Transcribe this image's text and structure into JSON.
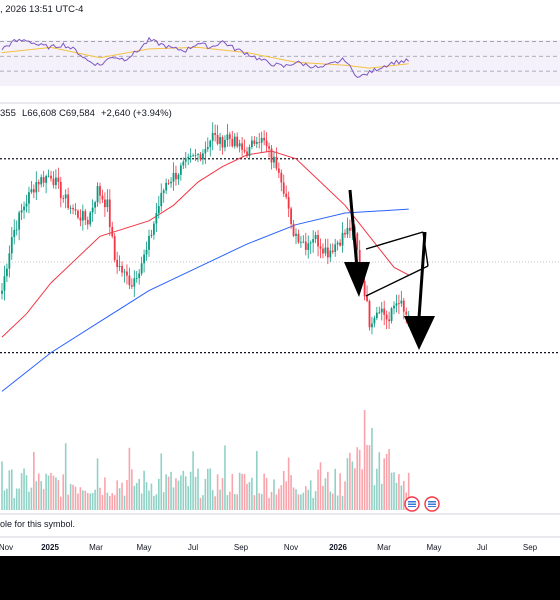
{
  "top_header": {
    "date_text": ", 2026 13:51 UTC-4"
  },
  "ohlc_header": {
    "open_fragment": "355",
    "low": "L66,608",
    "close": "C69,584",
    "change": "+2,640 (+3.94%)",
    "change_color": "#089981"
  },
  "notice": {
    "text": "ole for this symbol."
  },
  "colors": {
    "up": "#089981",
    "down": "#f23645",
    "ma_fast": "#f23645",
    "ma_slow": "#2962ff",
    "oscillator": "#7e57c2",
    "osc_signal": "#f5c242",
    "arrows": "#000000"
  },
  "chart_data": {
    "type": "candlestick",
    "x_ticks": [
      {
        "label": "Nov",
        "bold": false
      },
      {
        "label": "2025",
        "bold": true
      },
      {
        "label": "Mar",
        "bold": false
      },
      {
        "label": "May",
        "bold": false
      },
      {
        "label": "Jul",
        "bold": false
      },
      {
        "label": "Sep",
        "bold": false
      },
      {
        "label": "Nov",
        "bold": false
      },
      {
        "label": "2026",
        "bold": true
      },
      {
        "label": "Mar",
        "bold": false
      },
      {
        "label": "May",
        "bold": false
      },
      {
        "label": "Jul",
        "bold": false
      },
      {
        "label": "Sep",
        "bold": false
      }
    ],
    "last": {
      "open": 66944,
      "low": 66608,
      "close": 69584,
      "change": 2640,
      "change_pct": 3.94
    },
    "horizontal_levels": [
      110000,
      60000
    ],
    "price_path": [
      [
        0,
        76000
      ],
      [
        4,
        90000
      ],
      [
        9,
        98000
      ],
      [
        14,
        104000
      ],
      [
        20,
        106000
      ],
      [
        25,
        100000
      ],
      [
        30,
        96000
      ],
      [
        35,
        94000
      ],
      [
        39,
        102000
      ],
      [
        43,
        98000
      ],
      [
        46,
        84000
      ],
      [
        50,
        80000
      ],
      [
        53,
        78000
      ],
      [
        56,
        82000
      ],
      [
        59,
        86000
      ],
      [
        63,
        96000
      ],
      [
        67,
        104000
      ],
      [
        71,
        106000
      ],
      [
        74,
        108000
      ],
      [
        78,
        110000
      ],
      [
        82,
        112000
      ],
      [
        86,
        116000
      ],
      [
        89,
        114000
      ],
      [
        92,
        116000
      ],
      [
        95,
        114000
      ],
      [
        98,
        112000
      ],
      [
        101,
        112000
      ],
      [
        104,
        116000
      ],
      [
        107,
        114000
      ],
      [
        110,
        110000
      ],
      [
        113,
        108000
      ],
      [
        116,
        100000
      ],
      [
        118,
        92000
      ],
      [
        121,
        90000
      ],
      [
        124,
        88000
      ],
      [
        127,
        90000
      ],
      [
        130,
        88000
      ],
      [
        133,
        86000
      ],
      [
        136,
        88000
      ],
      [
        139,
        90000
      ],
      [
        142,
        92000
      ],
      [
        144,
        90000
      ],
      [
        146,
        82000
      ],
      [
        148,
        76000
      ],
      [
        150,
        68000
      ],
      [
        152,
        70000
      ],
      [
        154,
        72000
      ],
      [
        156,
        70000
      ],
      [
        158,
        68000
      ],
      [
        160,
        72000
      ],
      [
        162,
        74000
      ],
      [
        164,
        70000
      ],
      [
        166,
        69584
      ]
    ],
    "ma_fast": [
      [
        0,
        64000
      ],
      [
        10,
        70000
      ],
      [
        20,
        78000
      ],
      [
        30,
        84000
      ],
      [
        40,
        90000
      ],
      [
        50,
        92000
      ],
      [
        60,
        94000
      ],
      [
        70,
        98000
      ],
      [
        80,
        104000
      ],
      [
        90,
        108000
      ],
      [
        100,
        111000
      ],
      [
        110,
        112000
      ],
      [
        120,
        110000
      ],
      [
        130,
        104000
      ],
      [
        140,
        98000
      ],
      [
        150,
        90000
      ],
      [
        160,
        82000
      ],
      [
        166,
        80000
      ]
    ],
    "ma_slow": [
      [
        0,
        50000
      ],
      [
        20,
        60000
      ],
      [
        40,
        68000
      ],
      [
        60,
        76000
      ],
      [
        80,
        82000
      ],
      [
        100,
        88000
      ],
      [
        120,
        93000
      ],
      [
        140,
        96000
      ],
      [
        166,
        97000
      ]
    ],
    "oscillator": {
      "levels": [
        70,
        50,
        30
      ],
      "values": [
        [
          0,
          60
        ],
        [
          5,
          70
        ],
        [
          10,
          72
        ],
        [
          15,
          65
        ],
        [
          20,
          62
        ],
        [
          25,
          66
        ],
        [
          30,
          58
        ],
        [
          35,
          44
        ],
        [
          40,
          38
        ],
        [
          45,
          50
        ],
        [
          50,
          46
        ],
        [
          55,
          56
        ],
        [
          60,
          72
        ],
        [
          65,
          66
        ],
        [
          70,
          60
        ],
        [
          75,
          58
        ],
        [
          80,
          68
        ],
        [
          85,
          62
        ],
        [
          90,
          70
        ],
        [
          95,
          60
        ],
        [
          100,
          54
        ],
        [
          105,
          46
        ],
        [
          110,
          40
        ],
        [
          115,
          36
        ],
        [
          120,
          42
        ],
        [
          125,
          38
        ],
        [
          130,
          34
        ],
        [
          135,
          40
        ],
        [
          140,
          46
        ],
        [
          143,
          30
        ],
        [
          146,
          22
        ],
        [
          150,
          28
        ],
        [
          155,
          36
        ],
        [
          160,
          42
        ],
        [
          166,
          44
        ]
      ],
      "signal": [
        [
          0,
          55
        ],
        [
          20,
          62
        ],
        [
          40,
          48
        ],
        [
          60,
          60
        ],
        [
          80,
          62
        ],
        [
          100,
          55
        ],
        [
          120,
          42
        ],
        [
          140,
          38
        ],
        [
          150,
          34
        ],
        [
          166,
          40
        ]
      ]
    }
  }
}
